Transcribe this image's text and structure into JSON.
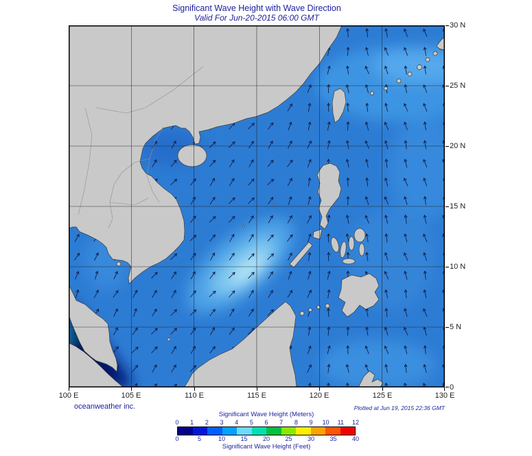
{
  "header": {
    "title": "Significant Wave Height with Wave Direction",
    "subtitle": "Valid For Jun-20-2015 06:00 GMT"
  },
  "axes": {
    "lon_ticks": [
      "100 E",
      "105 E",
      "110 E",
      "115 E",
      "120 E",
      "125 E",
      "130 E"
    ],
    "lat_ticks": [
      "30 N",
      "25 N",
      "20 N",
      "15 N",
      "10 N",
      "5 N",
      "0"
    ]
  },
  "legend": {
    "meters_label": "Significant Wave Height (Meters)",
    "feet_label": "Significant Wave Height (Feet)",
    "meters_ticks": [
      "0",
      "1",
      "2",
      "3",
      "4",
      "5",
      "6",
      "7",
      "8",
      "9",
      "10",
      "11",
      "12"
    ],
    "feet_ticks": [
      "0",
      "5",
      "10",
      "15",
      "20",
      "25",
      "30",
      "35",
      "40"
    ],
    "colors": [
      "#00008b",
      "#0018d8",
      "#0060ff",
      "#00a2ff",
      "#6fd9ff",
      "#00e0b0",
      "#00c040",
      "#8ce600",
      "#ffee00",
      "#ffa200",
      "#ff5500",
      "#f00000"
    ]
  },
  "footer": {
    "credit": "oceanweather inc.",
    "plotted": "Plotted at Jun 19, 2015 22:36 GMT"
  },
  "style": {
    "accent": "#1b1e9c",
    "ocean": "#2d7cd4",
    "land": "#c9c9c9"
  },
  "map": {
    "arrow_color": "#101c45"
  }
}
